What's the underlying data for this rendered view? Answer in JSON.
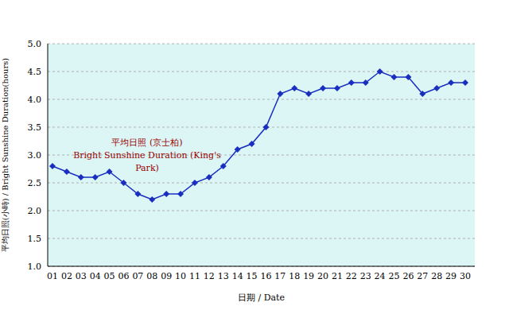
{
  "chart_data": {
    "type": "line",
    "annotations": [
      "平均日照 (京士柏)",
      "Bright Sunshine Duration (King's Park)"
    ],
    "x_label": "日期 / Date",
    "y_label": "平均日照(小時) / Bright Sunshine Duration(hours)",
    "categories": [
      "01",
      "02",
      "03",
      "04",
      "05",
      "06",
      "07",
      "08",
      "09",
      "10",
      "11",
      "12",
      "13",
      "14",
      "15",
      "16",
      "17",
      "18",
      "19",
      "20",
      "21",
      "22",
      "23",
      "24",
      "25",
      "26",
      "27",
      "28",
      "29",
      "30"
    ],
    "values": [
      2.8,
      2.7,
      2.6,
      2.6,
      2.7,
      2.5,
      2.3,
      2.2,
      2.3,
      2.3,
      2.5,
      2.6,
      2.8,
      3.1,
      3.2,
      3.5,
      4.1,
      4.2,
      4.1,
      4.2,
      4.2,
      4.3,
      4.3,
      4.5,
      4.4,
      4.4,
      4.1,
      4.2,
      4.3,
      4.3
    ],
    "color": "#1a2fc0",
    "marker": "diamond",
    "line_style": "solid",
    "ylim": [
      1,
      5
    ],
    "yticks": [
      {
        "value": 1,
        "label": "1.0"
      },
      1.5,
      {
        "value": 2,
        "label": "2.0"
      },
      2.5,
      {
        "value": 3,
        "label": "3.0"
      },
      3.5,
      {
        "value": 4,
        "label": "4.0"
      },
      4.5,
      {
        "value": 5,
        "label": "5.0"
      }
    ],
    "grid": true
  }
}
